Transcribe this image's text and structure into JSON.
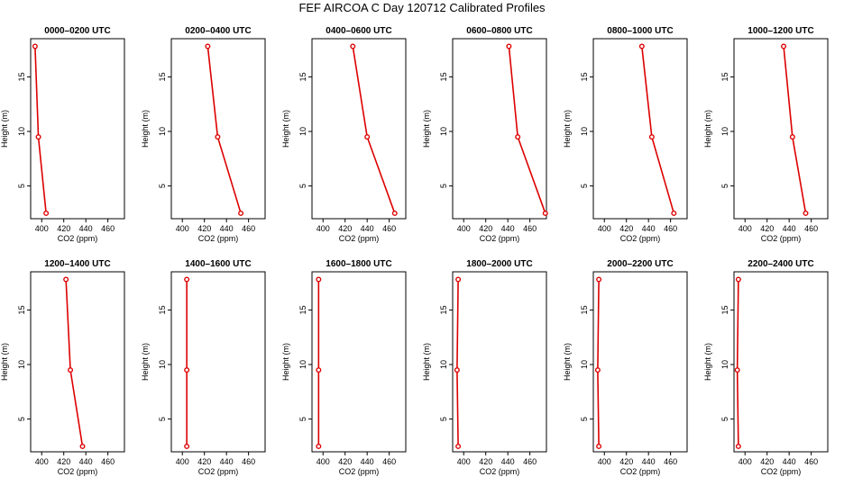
{
  "figure": {
    "title": "FEF  AIRCOA C  Day 120712  Calibrated Profiles"
  },
  "colors": {
    "line": "#dd0000",
    "axis": "#000000",
    "background": "#ffffff"
  },
  "chart_data": [
    {
      "type": "line",
      "title": "0000–0200 UTC",
      "xlabel": "CO2 (ppm)",
      "ylabel": "Height (m)",
      "xlim": [
        390,
        475
      ],
      "ylim": [
        2,
        18.5
      ],
      "xticks": [
        400,
        420,
        440,
        460
      ],
      "yticks": [
        5,
        10,
        15
      ],
      "x": [
        394,
        397,
        404
      ],
      "y": [
        17.8,
        9.5,
        2.5
      ]
    },
    {
      "type": "line",
      "title": "0200–0400 UTC",
      "xlabel": "CO2 (ppm)",
      "ylabel": "Height (m)",
      "xlim": [
        390,
        475
      ],
      "ylim": [
        2,
        18.5
      ],
      "xticks": [
        400,
        420,
        440,
        460
      ],
      "yticks": [
        5,
        10,
        15
      ],
      "x": [
        423,
        432,
        453
      ],
      "y": [
        17.8,
        9.5,
        2.5
      ]
    },
    {
      "type": "line",
      "title": "0400–0600 UTC",
      "xlabel": "CO2 (ppm)",
      "ylabel": "Height (m)",
      "xlim": [
        390,
        475
      ],
      "ylim": [
        2,
        18.5
      ],
      "xticks": [
        400,
        420,
        440,
        460
      ],
      "yticks": [
        5,
        10,
        15
      ],
      "x": [
        427,
        440,
        465
      ],
      "y": [
        17.8,
        9.5,
        2.5
      ]
    },
    {
      "type": "line",
      "title": "0600–0800 UTC",
      "xlabel": "CO2 (ppm)",
      "ylabel": "Height (m)",
      "xlim": [
        390,
        475
      ],
      "ylim": [
        2,
        18.5
      ],
      "xticks": [
        400,
        420,
        440,
        460
      ],
      "yticks": [
        5,
        10,
        15
      ],
      "x": [
        441,
        449,
        474
      ],
      "y": [
        17.8,
        9.5,
        2.5
      ]
    },
    {
      "type": "line",
      "title": "0800–1000 UTC",
      "xlabel": "CO2 (ppm)",
      "ylabel": "Height (m)",
      "xlim": [
        390,
        475
      ],
      "ylim": [
        2,
        18.5
      ],
      "xticks": [
        400,
        420,
        440,
        460
      ],
      "yticks": [
        5,
        10,
        15
      ],
      "x": [
        434,
        443,
        463
      ],
      "y": [
        17.8,
        9.5,
        2.5
      ]
    },
    {
      "type": "line",
      "title": "1000–1200 UTC",
      "xlabel": "CO2 (ppm)",
      "ylabel": "Height (m)",
      "xlim": [
        390,
        475
      ],
      "ylim": [
        2,
        18.5
      ],
      "xticks": [
        400,
        420,
        440,
        460
      ],
      "yticks": [
        5,
        10,
        15
      ],
      "x": [
        435,
        443,
        455
      ],
      "y": [
        17.8,
        9.5,
        2.5
      ]
    },
    {
      "type": "line",
      "title": "1200–1400 UTC",
      "xlabel": "CO2 (ppm)",
      "ylabel": "Height (m)",
      "xlim": [
        390,
        475
      ],
      "ylim": [
        2,
        18.5
      ],
      "xticks": [
        400,
        420,
        440,
        460
      ],
      "yticks": [
        5,
        10,
        15
      ],
      "x": [
        422,
        426,
        437
      ],
      "y": [
        17.8,
        9.5,
        2.5
      ]
    },
    {
      "type": "line",
      "title": "1400–1600 UTC",
      "xlabel": "CO2 (ppm)",
      "ylabel": "Height (m)",
      "xlim": [
        390,
        475
      ],
      "ylim": [
        2,
        18.5
      ],
      "xticks": [
        400,
        420,
        440,
        460
      ],
      "yticks": [
        5,
        10,
        15
      ],
      "x": [
        404,
        404,
        404
      ],
      "y": [
        17.8,
        9.5,
        2.5
      ]
    },
    {
      "type": "line",
      "title": "1600–1800 UTC",
      "xlabel": "CO2 (ppm)",
      "ylabel": "Height (m)",
      "xlim": [
        390,
        475
      ],
      "ylim": [
        2,
        18.5
      ],
      "xticks": [
        400,
        420,
        440,
        460
      ],
      "yticks": [
        5,
        10,
        15
      ],
      "x": [
        396,
        396,
        396
      ],
      "y": [
        17.8,
        9.5,
        2.5
      ]
    },
    {
      "type": "line",
      "title": "1800–2000 UTC",
      "xlabel": "CO2 (ppm)",
      "ylabel": "Height (m)",
      "xlim": [
        390,
        475
      ],
      "ylim": [
        2,
        18.5
      ],
      "xticks": [
        400,
        420,
        440,
        460
      ],
      "yticks": [
        5,
        10,
        15
      ],
      "x": [
        395,
        394,
        395
      ],
      "y": [
        17.8,
        9.5,
        2.5
      ]
    },
    {
      "type": "line",
      "title": "2000–2200 UTC",
      "xlabel": "CO2 (ppm)",
      "ylabel": "Height (m)",
      "xlim": [
        390,
        475
      ],
      "ylim": [
        2,
        18.5
      ],
      "xticks": [
        400,
        420,
        440,
        460
      ],
      "yticks": [
        5,
        10,
        15
      ],
      "x": [
        395,
        394,
        395
      ],
      "y": [
        17.8,
        9.5,
        2.5
      ]
    },
    {
      "type": "line",
      "title": "2200–2400 UTC",
      "xlabel": "CO2 (ppm)",
      "ylabel": "Height (m)",
      "xlim": [
        390,
        475
      ],
      "ylim": [
        2,
        18.5
      ],
      "xticks": [
        400,
        420,
        440,
        460
      ],
      "yticks": [
        5,
        10,
        15
      ],
      "x": [
        394,
        393,
        394
      ],
      "y": [
        17.8,
        9.5,
        2.5
      ]
    }
  ]
}
